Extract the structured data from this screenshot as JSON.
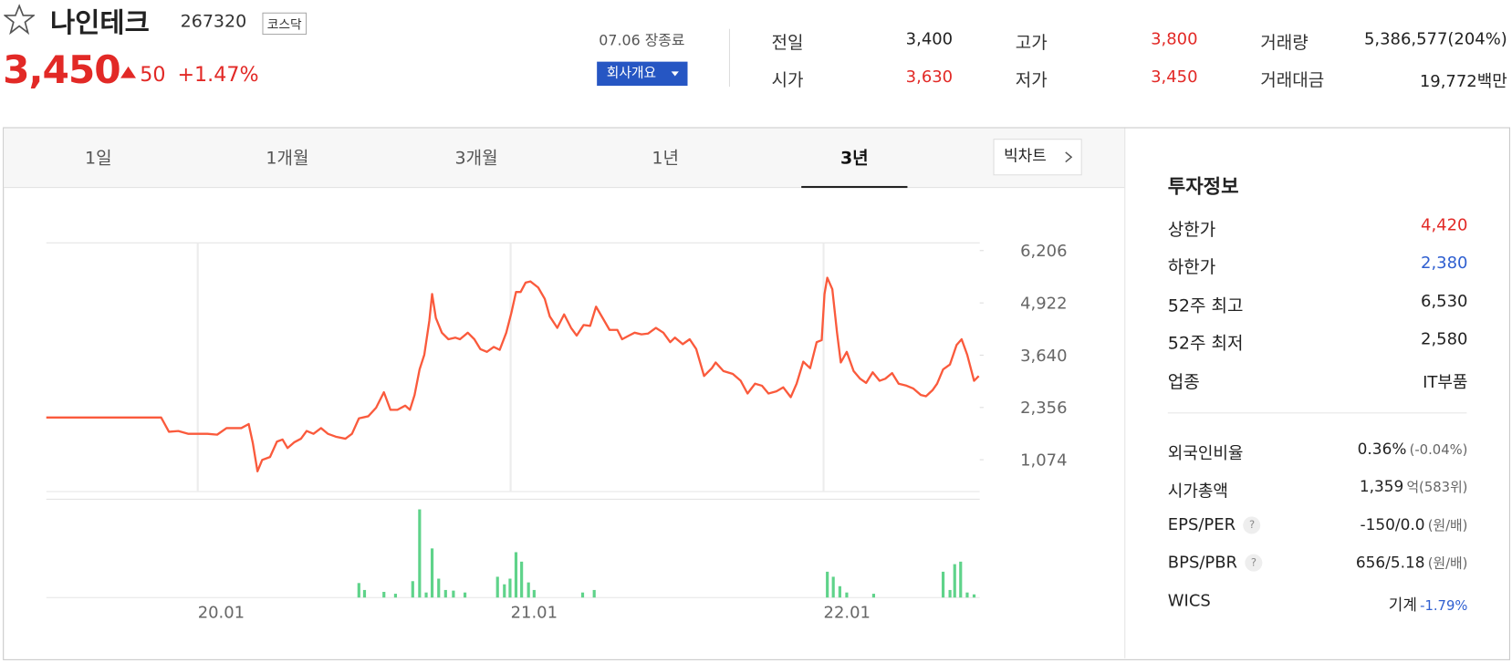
{
  "header": {
    "name": "나인테크",
    "code": "267320",
    "market": "코스닥",
    "price": "3,450",
    "change": "50",
    "change_rate": "+1.47%",
    "status": "07.06 장종료",
    "company_button": "회사개요"
  },
  "quote": [
    {
      "label": "전일",
      "value": "3,400",
      "color": "#222222"
    },
    {
      "label": "시가",
      "value": "3,630",
      "color": "#e22926"
    },
    {
      "label": "고가",
      "value": "3,800",
      "color": "#e22926"
    },
    {
      "label": "저가",
      "value": "3,450",
      "color": "#e22926"
    },
    {
      "label": "거래량",
      "value": "5,386,577(204%)",
      "color": "#222222"
    },
    {
      "label": "거래대금",
      "value": "19,772",
      "unit": "백만",
      "color": "#222222"
    }
  ],
  "tabs": {
    "items": [
      "1일",
      "1개월",
      "3개월",
      "1년",
      "3년"
    ],
    "active": 4,
    "big_chart": "빅차트"
  },
  "chart_data": [
    {
      "type": "line",
      "color": "#fa5a3c",
      "xlim": [
        2019.516,
        2022.496
      ],
      "xticks": [
        {
          "value": 2020,
          "label": "20.01"
        },
        {
          "value": 2021,
          "label": "21.01"
        },
        {
          "value": 2022,
          "label": "22.01"
        }
      ],
      "ylim": [
        294,
        6395
      ],
      "yticks": [
        {
          "value": 1074,
          "label": "1,074"
        },
        {
          "value": 2356,
          "label": "2,356"
        },
        {
          "value": 3640,
          "label": "3,640"
        },
        {
          "value": 4922,
          "label": "4,922"
        },
        {
          "value": 6206,
          "label": "6,206"
        }
      ],
      "x": [
        2019.516,
        2019.883,
        2019.908,
        2019.938,
        2019.969,
        2020.031,
        2020.062,
        2020.092,
        2020.139,
        2020.163,
        2020.176,
        2020.191,
        2020.206,
        2020.231,
        2020.253,
        2020.271,
        2020.287,
        2020.308,
        2020.33,
        2020.348,
        2020.37,
        2020.394,
        2020.416,
        2020.441,
        2020.472,
        2020.493,
        2020.515,
        2020.545,
        2020.57,
        2020.595,
        2020.616,
        2020.638,
        2020.663,
        2020.678,
        2020.693,
        2020.709,
        2020.724,
        2020.74,
        2020.749,
        2020.761,
        2020.78,
        2020.801,
        2020.823,
        2020.838,
        2020.863,
        2020.884,
        2020.903,
        2020.924,
        2020.946,
        2020.965,
        2020.986,
        2021.002,
        2021.017,
        2021.032,
        2021.048,
        2021.063,
        2021.088,
        2021.109,
        2021.125,
        2021.149,
        2021.171,
        2021.193,
        2021.211,
        2021.233,
        2021.254,
        2021.273,
        2021.294,
        2021.316,
        2021.341,
        2021.356,
        2021.378,
        2021.396,
        2021.418,
        2021.439,
        2021.464,
        2021.488,
        2021.51,
        2021.525,
        2021.55,
        2021.572,
        2021.593,
        2021.618,
        2021.643,
        2021.655,
        2021.68,
        2021.71,
        2021.735,
        2021.757,
        2021.781,
        2021.803,
        2021.824,
        2021.849,
        2021.871,
        2021.895,
        2021.914,
        2021.935,
        2021.957,
        2021.978,
        2021.994,
        2022.003,
        2022.012,
        2022.028,
        2022.043,
        2022.055,
        2022.074,
        2022.096,
        2022.117,
        2022.136,
        2022.157,
        2022.179,
        2022.197,
        2022.219,
        2022.24,
        2022.265,
        2022.287,
        2022.311,
        2022.327,
        2022.348,
        2022.363,
        2022.382,
        2022.404,
        2022.425,
        2022.441,
        2022.459,
        2022.481,
        2022.496
      ],
      "series": [
        {
          "values": [
            2110,
            2110,
            1760,
            1780,
            1710,
            1710,
            1690,
            1850,
            1850,
            1950,
            1480,
            790,
            1070,
            1140,
            1520,
            1570,
            1360,
            1500,
            1590,
            1780,
            1710,
            1850,
            1710,
            1640,
            1590,
            1710,
            2090,
            2140,
            2350,
            2730,
            2300,
            2300,
            2400,
            2300,
            2660,
            3290,
            3650,
            4480,
            5140,
            4550,
            4190,
            4030,
            4070,
            4030,
            4190,
            4030,
            3790,
            3720,
            3840,
            3770,
            4190,
            4670,
            5190,
            5190,
            5420,
            5450,
            5300,
            5020,
            4590,
            4310,
            4640,
            4310,
            4120,
            4380,
            4360,
            4830,
            4550,
            4260,
            4260,
            4030,
            4120,
            4190,
            4150,
            4170,
            4310,
            4190,
            3960,
            4070,
            3910,
            4030,
            3790,
            3130,
            3320,
            3460,
            3250,
            3180,
            3010,
            2700,
            2940,
            2890,
            2700,
            2750,
            2850,
            2610,
            2940,
            3480,
            3320,
            3960,
            4010,
            5140,
            5540,
            5260,
            4190,
            3460,
            3720,
            3250,
            3060,
            2960,
            3220,
            3010,
            3060,
            3200,
            2940,
            2890,
            2820,
            2660,
            2630,
            2780,
            2940,
            3290,
            3410,
            3890,
            4030,
            3650,
            3010,
            3130
          ]
        }
      ]
    },
    {
      "type": "bar",
      "color": "#5fd38a",
      "ylim": [
        0,
        15
      ],
      "x": [
        2020.515,
        2020.533,
        2020.595,
        2020.632,
        2020.687,
        2020.709,
        2020.73,
        2020.749,
        2020.77,
        2020.792,
        2020.817,
        2020.854,
        2020.958,
        2020.98,
        2020.998,
        2021.017,
        2021.035,
        2021.057,
        2021.075,
        2021.23,
        2021.267,
        2022.012,
        2022.031,
        2022.052,
        2022.074,
        2022.16,
        2022.382,
        2022.404,
        2022.419,
        2022.438,
        2022.459,
        2022.481
      ],
      "values": [
        2.3,
        1.2,
        0.9,
        0.6,
        2.6,
        14,
        0.8,
        7.8,
        3.0,
        1.2,
        1.1,
        0.8,
        3.3,
        2.1,
        3.0,
        7.2,
        5.7,
        2.4,
        1.2,
        0.8,
        1.2,
        4.1,
        3.3,
        1.8,
        0.8,
        0.6,
        4.1,
        1.2,
        5.3,
        5.7,
        0.8,
        0.5
      ]
    }
  ],
  "invest": {
    "title": "투자정보",
    "rows1": [
      {
        "label": "상한가",
        "value": "4,420",
        "color": "#e22926"
      },
      {
        "label": "하한가",
        "value": "2,380",
        "color": "#2f5fd0"
      },
      {
        "label": "52주 최고",
        "value": "6,530",
        "color": "#222222"
      },
      {
        "label": "52주 최저",
        "value": "2,580",
        "color": "#222222"
      },
      {
        "label": "업종",
        "value": "IT부품",
        "color": "#222222"
      }
    ],
    "rows2": [
      {
        "label": "외국인비율",
        "value": "0.36%",
        "sub": "(-0.04%)"
      },
      {
        "label": "시가총액",
        "value": "1,359",
        "sub": "억(583위)"
      },
      {
        "label": "EPS/PER",
        "help": "?",
        "value": "-150/0.0",
        "sub": "(원/배)"
      },
      {
        "label": "BPS/PBR",
        "help": "?",
        "value": "656/5.18",
        "sub": "(원/배)"
      },
      {
        "label": "WICS",
        "value": "기계",
        "sub": "-1.79%",
        "sub_color": "#2f5fd0"
      }
    ]
  }
}
